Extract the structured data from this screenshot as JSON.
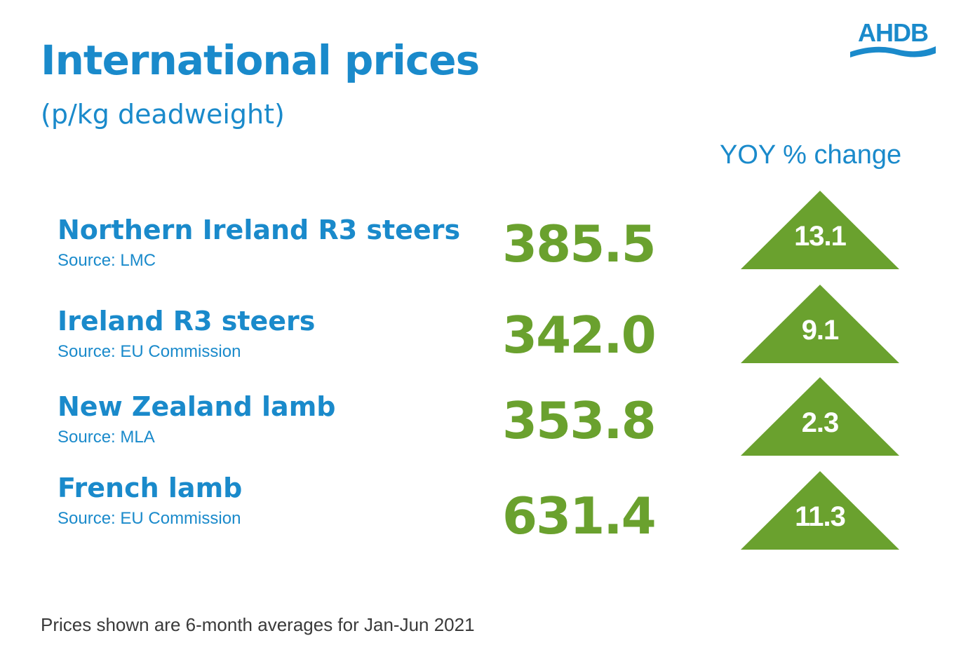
{
  "header": {
    "title": "International prices",
    "subtitle": "(p/kg deadweight)",
    "logo_text": "AHDB",
    "yoy_label": "YOY % change"
  },
  "colors": {
    "blue": "#1a8acb",
    "green": "#6aa12e",
    "text_gray": "#3a3a3a"
  },
  "rows": [
    {
      "name": "Northern Ireland R3 steers",
      "source": "Source: LMC",
      "price": "385.5",
      "yoy": "13.1",
      "trend_icon": "up-triangle-icon"
    },
    {
      "name": "Ireland R3 steers",
      "source": "Source: EU Commission",
      "price": "342.0",
      "yoy": "9.1",
      "trend_icon": "up-triangle-icon"
    },
    {
      "name": "New Zealand lamb",
      "source": "Source: MLA",
      "price": "353.8",
      "yoy": "2.3",
      "trend_icon": "up-triangle-icon"
    },
    {
      "name": "French lamb",
      "source": "Source: EU Commission",
      "price": "631.4",
      "yoy": "11.3",
      "trend_icon": "up-triangle-icon"
    }
  ],
  "footnote": "Prices shown are 6-month averages for Jan-Jun 2021"
}
